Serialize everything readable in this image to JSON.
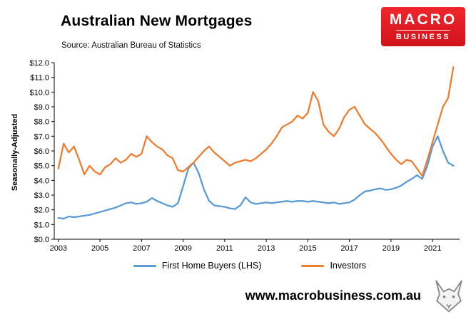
{
  "header": {
    "title": "Australian New Mortgages",
    "source": "Source: Australian Bureau of Statistics",
    "logo": {
      "line1": "MACRO",
      "line2": "BUSINESS",
      "bg_color": "#e31b23"
    }
  },
  "footer": {
    "url": "www.macrobusiness.com.au"
  },
  "chart_data": {
    "type": "line",
    "title": "Australian New Mortgages",
    "subtitle": "Source: Australian Bureau of Statistics",
    "xlabel": "",
    "ylabel": "Seasonally-Adjusted",
    "ylim": [
      0,
      12
    ],
    "y_tick_step": 1,
    "y_tick_prefix": "$",
    "y_tick_decimals": 1,
    "xlim": [
      2002.8,
      2022.3
    ],
    "x_ticks": [
      2003,
      2005,
      2007,
      2009,
      2011,
      2013,
      2015,
      2017,
      2019,
      2021
    ],
    "grid": false,
    "legend_position": "bottom",
    "axis_color": "#000000",
    "x": [
      2003,
      2003.25,
      2003.5,
      2003.75,
      2004,
      2004.25,
      2004.5,
      2004.75,
      2005,
      2005.25,
      2005.5,
      2005.75,
      2006,
      2006.25,
      2006.5,
      2006.75,
      2007,
      2007.25,
      2007.5,
      2007.75,
      2008,
      2008.25,
      2008.5,
      2008.75,
      2009,
      2009.25,
      2009.5,
      2009.75,
      2010,
      2010.25,
      2010.5,
      2010.75,
      2011,
      2011.25,
      2011.5,
      2011.75,
      2012,
      2012.25,
      2012.5,
      2012.75,
      2013,
      2013.25,
      2013.5,
      2013.75,
      2014,
      2014.25,
      2014.5,
      2014.75,
      2015,
      2015.25,
      2015.5,
      2015.75,
      2016,
      2016.25,
      2016.5,
      2016.75,
      2017,
      2017.25,
      2017.5,
      2017.75,
      2018,
      2018.25,
      2018.5,
      2018.75,
      2019,
      2019.25,
      2019.5,
      2019.75,
      2020,
      2020.25,
      2020.5,
      2020.75,
      2021,
      2021.25,
      2021.5,
      2021.75,
      2022
    ],
    "series": [
      {
        "name": "First Home Buyers (LHS)",
        "color": "#5b9bd5",
        "y": [
          1.45,
          1.4,
          1.55,
          1.5,
          1.55,
          1.6,
          1.65,
          1.75,
          1.85,
          1.95,
          2.05,
          2.15,
          2.3,
          2.45,
          2.5,
          2.4,
          2.45,
          2.55,
          2.8,
          2.6,
          2.45,
          2.3,
          2.2,
          2.45,
          3.6,
          4.8,
          5.2,
          4.5,
          3.4,
          2.6,
          2.3,
          2.25,
          2.2,
          2.1,
          2.05,
          2.3,
          2.85,
          2.5,
          2.4,
          2.45,
          2.5,
          2.45,
          2.5,
          2.55,
          2.6,
          2.55,
          2.6,
          2.6,
          2.55,
          2.6,
          2.55,
          2.5,
          2.45,
          2.5,
          2.4,
          2.45,
          2.5,
          2.7,
          3.0,
          3.25,
          3.3,
          3.4,
          3.45,
          3.35,
          3.4,
          3.5,
          3.65,
          3.9,
          4.1,
          4.35,
          4.1,
          5.0,
          6.3,
          7.0,
          6.0,
          5.2,
          5.0
        ]
      },
      {
        "name": "Investors",
        "color": "#ed7d31",
        "y": [
          4.8,
          6.5,
          5.9,
          6.3,
          5.4,
          4.4,
          5.0,
          4.6,
          4.4,
          4.9,
          5.1,
          5.5,
          5.2,
          5.4,
          5.8,
          5.6,
          5.8,
          7.0,
          6.6,
          6.3,
          6.1,
          5.7,
          5.5,
          4.7,
          4.6,
          4.9,
          5.2,
          5.6,
          6.0,
          6.3,
          5.9,
          5.6,
          5.3,
          5.0,
          5.2,
          5.3,
          5.4,
          5.3,
          5.5,
          5.8,
          6.1,
          6.5,
          7.0,
          7.6,
          7.8,
          8.0,
          8.4,
          8.2,
          8.6,
          10.0,
          9.4,
          7.8,
          7.3,
          7.0,
          7.5,
          8.3,
          8.8,
          9.0,
          8.4,
          7.8,
          7.5,
          7.2,
          6.8,
          6.3,
          5.8,
          5.4,
          5.1,
          5.4,
          5.3,
          4.8,
          4.3,
          5.4,
          6.6,
          7.8,
          9.0,
          9.6,
          11.7
        ]
      }
    ]
  }
}
